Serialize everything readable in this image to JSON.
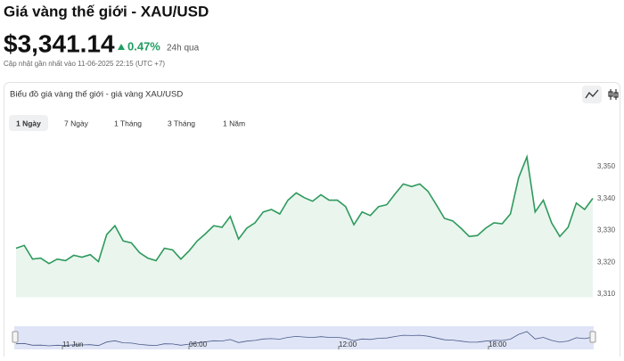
{
  "header": {
    "title": "Giá vàng thế giới - XAU/USD",
    "price": "$3,341.14",
    "change": "0.47%",
    "change_period": "24h qua",
    "updated": "Cập nhật gần nhất vào 11-06-2025 22:15 (UTC +7)"
  },
  "chart_data": {
    "type": "area",
    "title": "Biểu đồ giá vàng thế giới - giá vàng XAU/USD",
    "ranges": [
      "1 Ngày",
      "7 Ngày",
      "1 Tháng",
      "3 Tháng",
      "1 Năm"
    ],
    "selected_range": 0,
    "values": [
      3324.4,
      3325.3,
      3321.0,
      3321.3,
      3319.6,
      3321.0,
      3320.5,
      3322.2,
      3321.6,
      3322.4,
      3320.2,
      3328.7,
      3331.5,
      3326.7,
      3326.1,
      3323.0,
      3321.3,
      3320.5,
      3324.4,
      3323.9,
      3321.0,
      3323.6,
      3326.7,
      3329.0,
      3331.5,
      3331.0,
      3334.4,
      3327.3,
      3330.7,
      3332.4,
      3335.8,
      3336.6,
      3335.2,
      3339.5,
      3341.8,
      3340.3,
      3339.2,
      3341.2,
      3339.5,
      3339.5,
      3337.5,
      3331.8,
      3335.8,
      3334.7,
      3337.5,
      3338.1,
      3341.5,
      3344.6,
      3343.8,
      3344.6,
      3342.3,
      3338.1,
      3333.8,
      3333.0,
      3330.7,
      3328.1,
      3328.4,
      3330.7,
      3332.4,
      3332.1,
      3335.2,
      3346.6,
      3353.1,
      3335.8,
      3339.5,
      3332.4,
      3328.1,
      3331.0,
      3338.6,
      3336.6,
      3340.1
    ],
    "color": "#2e9a5c",
    "ylim": [
      3309,
      3359
    ],
    "yticks": [
      {
        "value": 3310,
        "label": "3,310"
      },
      {
        "value": 3320,
        "label": "3,320"
      },
      {
        "value": 3330,
        "label": "3,330"
      },
      {
        "value": 3340,
        "label": "3,340"
      },
      {
        "value": 3350,
        "label": "3,350"
      }
    ],
    "navigator_labels": [
      "11 Jun",
      "06:00",
      "12:00",
      "18:00"
    ]
  }
}
